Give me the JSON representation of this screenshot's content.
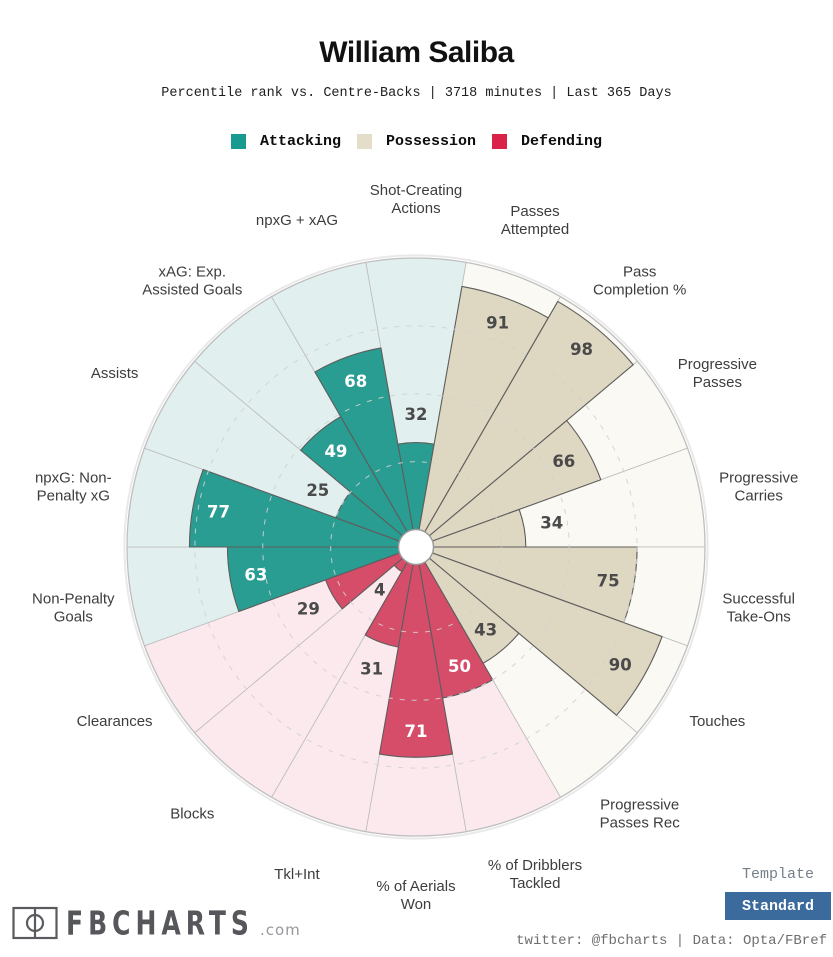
{
  "header": {
    "title": "William Saliba",
    "subtitle": "Percentile rank vs. Centre-Backs | 3718 minutes | Last 365 Days"
  },
  "legend": {
    "items": [
      {
        "label": "Attacking",
        "group": "attacking",
        "color": "#189a90"
      },
      {
        "label": "Possession",
        "group": "possession",
        "color": "#e3ddc9"
      },
      {
        "label": "Defending",
        "group": "defending",
        "color": "#da2148"
      }
    ]
  },
  "chart_data": {
    "type": "pizza-radar",
    "unit": "percentile",
    "max": 100,
    "direction": "clockwise",
    "start": "top",
    "gridlines": [
      25,
      50,
      75
    ],
    "grid_style": "dashed",
    "group_colors": {
      "attacking": {
        "fill": "#2a9d92",
        "light": "#e1efee"
      },
      "possession": {
        "fill": "#ded7c1",
        "light": "#faf9f3"
      },
      "defending": {
        "fill": "#d64d69",
        "light": "#fbe9ee"
      }
    },
    "value_label_dark_color": "#4a4a4a",
    "params": [
      {
        "label": "Shot-Creating Actions",
        "label_lines": [
          "Shot-Creating",
          "Actions"
        ],
        "value": 32,
        "group": "attacking"
      },
      {
        "label": "Passes Attempted",
        "label_lines": [
          "Passes",
          "Attempted"
        ],
        "value": 91,
        "group": "possession"
      },
      {
        "label": "Pass Completion %",
        "label_lines": [
          "Pass",
          "Completion %"
        ],
        "value": 98,
        "group": "possession"
      },
      {
        "label": "Progressive Passes",
        "label_lines": [
          "Progressive",
          "Passes"
        ],
        "value": 66,
        "group": "possession"
      },
      {
        "label": "Progressive Carries",
        "label_lines": [
          "Progressive",
          "Carries"
        ],
        "value": 34,
        "group": "possession"
      },
      {
        "label": "Successful Take-Ons",
        "label_lines": [
          "Successful",
          "Take-Ons"
        ],
        "value": 75,
        "group": "possession"
      },
      {
        "label": "Touches",
        "label_lines": [
          "Touches"
        ],
        "value": 90,
        "group": "possession"
      },
      {
        "label": "Progressive Passes Rec",
        "label_lines": [
          "Progressive",
          "Passes Rec"
        ],
        "value": 43,
        "group": "possession"
      },
      {
        "label": "% of Dribblers Tackled",
        "label_lines": [
          "% of Dribblers",
          "Tackled"
        ],
        "value": 50,
        "group": "defending"
      },
      {
        "label": "% of Aerials Won",
        "label_lines": [
          "% of Aerials",
          "Won"
        ],
        "value": 71,
        "group": "defending"
      },
      {
        "label": "Tkl+Int",
        "label_lines": [
          "Tkl+Int"
        ],
        "value": 31,
        "group": "defending"
      },
      {
        "label": "Blocks",
        "label_lines": [
          "Blocks"
        ],
        "value": 4,
        "group": "defending"
      },
      {
        "label": "Clearances",
        "label_lines": [
          "Clearances"
        ],
        "value": 29,
        "group": "defending"
      },
      {
        "label": "Non-Penalty Goals",
        "label_lines": [
          "Non-Penalty",
          "Goals"
        ],
        "value": 63,
        "group": "attacking"
      },
      {
        "label": "npxG: Non-Penalty xG",
        "label_lines": [
          "npxG: Non-",
          "Penalty xG"
        ],
        "value": 77,
        "group": "attacking"
      },
      {
        "label": "Assists",
        "label_lines": [
          "Assists"
        ],
        "value": 25,
        "group": "attacking"
      },
      {
        "label": "xAG: Exp. Assisted Goals",
        "label_lines": [
          "xAG: Exp.",
          "Assisted Goals"
        ],
        "value": 49,
        "group": "attacking"
      },
      {
        "label": "npxG + xAG",
        "label_lines": [
          "npxG + xAG"
        ],
        "value": 68,
        "group": "attacking"
      }
    ]
  },
  "footer": {
    "logo_text": "FBCHARTS",
    "logo_suffix": ".com",
    "template_label": "Template",
    "template_value": "Standard",
    "template_button_color": "#3b6a9d",
    "credits": "twitter: @fbcharts | Data: Opta/FBref"
  }
}
